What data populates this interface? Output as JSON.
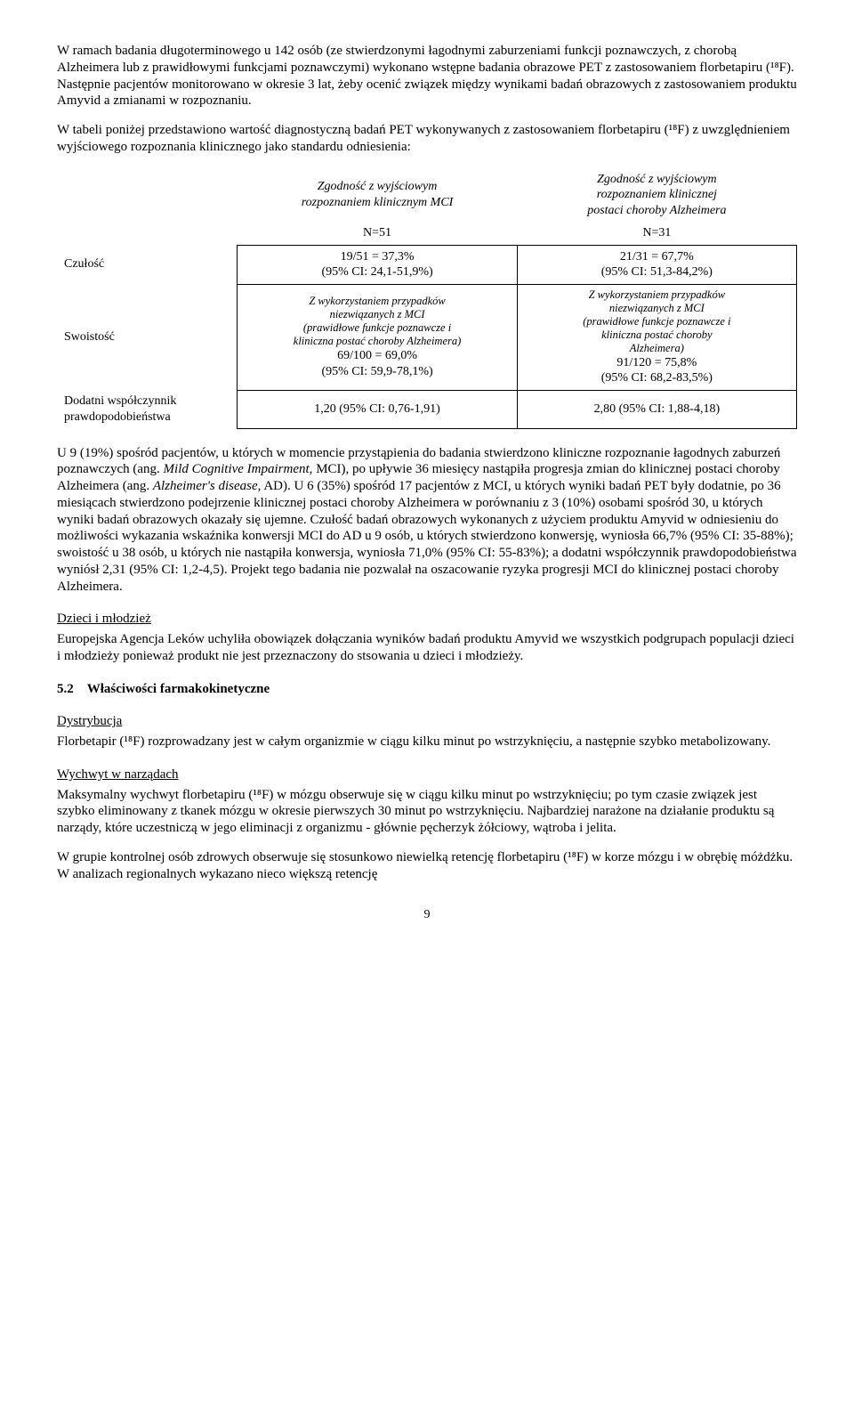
{
  "intro_para": "W ramach badania długoterminowego u 142 osób (ze stwierdzonymi łagodnymi zaburzeniami funkcji poznawczych, z chorobą Alzheimera lub z prawidłowymi funkcjami poznawczymi) wykonano wstępne badania obrazowe PET z zastosowaniem florbetapiru (¹⁸F). Następnie pacjentów monitorowano w okresie 3 lat, żeby ocenić związek między wynikami badań obrazowych z zastosowaniem produktu Amyvid a zmianami w rozpoznaniu.",
  "table_intro": "W tabeli poniżej przedstawiono wartość diagnostyczną badań PET wykonywanych z zastosowaniem florbetapiru (¹⁸F) z uwzględnieniem wyjściowego rozpoznania klinicznego jako standardu odniesienia:",
  "table": {
    "col1_head_line1": "Zgodność z wyjściowym",
    "col1_head_line2": "rozpoznaniem klinicznym MCI",
    "col2_head_line1": "Zgodność z wyjściowym",
    "col2_head_line2": "rozpoznaniem klinicznej",
    "col2_head_line3": "postaci choroby Alzheimera",
    "col1_n": "N=51",
    "col2_n": "N=31",
    "row_sens_label": "Czułość",
    "row_spec_label": "Swoistość",
    "row_plr_label_l1": "Dodatni współczynnik",
    "row_plr_label_l2": "prawdopodobieństwa",
    "sens_col1_l1": "19/51 = 37,3%",
    "sens_col1_l2": "(95% CI: 24,1-51,9%)",
    "sens_col2_l1": "21/31 = 67,7%",
    "sens_col2_l2": "(95% CI: 51,3-84,2%)",
    "spec_col1_it_l1": "Z wykorzystaniem przypadków",
    "spec_col1_it_l2": "niezwiązanych z MCI",
    "spec_col1_it_l3": "(prawidłowe funkcje poznawcze i",
    "spec_col1_it_l4": "kliniczna postać choroby Alzheimera)",
    "spec_col1_l5": "69/100 = 69,0%",
    "spec_col1_l6": "(95% CI: 59,9-78,1%)",
    "spec_col2_it_l1": "Z wykorzystaniem przypadków",
    "spec_col2_it_l2": "niezwiązanych z MCI",
    "spec_col2_it_l3": "(prawidłowe funkcje poznawcze i",
    "spec_col2_it_l4": "kliniczna postać choroby",
    "spec_col2_it_l5": "Alzheimera)",
    "spec_col2_l6": "91/120 = 75,8%",
    "spec_col2_l7": "(95% CI: 68,2-83,5%)",
    "plr_col1": "1,20 (95% CI: 0,76-1,91)",
    "plr_col2": "2,80 (95% CI: 1,88-4,18)"
  },
  "post_table_para_part1": "U 9 (19%) spośród pacjentów, u których w momencie przystąpienia do badania stwierdzono kliniczne rozpoznanie łagodnych zaburzeń poznawczych (ang. ",
  "post_table_para_it1": "Mild Cognitive Impairment,",
  "post_table_para_part2": " MCI), po upływie 36 miesięcy nastąpiła progresja zmian do klinicznej postaci choroby Alzheimera (ang. ",
  "post_table_para_it2": "Alzheimer's disease",
  "post_table_para_part3": ", AD). U 6 (35%) spośród 17 pacjentów z MCI, u których wyniki badań PET były dodatnie, po 36 miesiącach stwierdzono podejrzenie klinicznej postaci choroby Alzheimera w porównaniu z 3 (10%) osobami spośród 30, u których wyniki badań obrazowych okazały się ujemne. Czułość badań obrazowych wykonanych z użyciem produktu Amyvid w odniesieniu do możliwości wykazania wskaźnika konwersji MCI do AD u 9 osób, u których stwierdzono konwersję, wyniosła 66,7% (95% CI: 35-88%); swoistość u 38 osób, u których nie nastąpiła konwersja, wyniosła 71,0% (95% CI: 55-83%); a dodatni współczynnik prawdopodobieństwa wyniósł 2,31 (95% CI: 1,2-4,5). Projekt tego badania nie pozwalał na oszacowanie ryzyka progresji MCI do klinicznej postaci choroby Alzheimera.",
  "children_head": "Dzieci i młodzież",
  "children_para": "Europejska Agencja Leków uchyliła obowiązek dołączania wyników badań produktu Amyvid we wszystkich podgrupach populacji dzieci i młodzieży ponieważ produkt nie jest przeznaczony do stsowania u dzieci i młodzieży.",
  "sec52_num": "5.2",
  "sec52_title": "Właściwości farmakokinetyczne",
  "dist_head": "Dystrybucja",
  "dist_para": "Florbetapir (¹⁸F) rozprowadzany jest w całym organizmie w ciągu kilku minut po wstrzyknięciu, a następnie szybko metabolizowany.",
  "uptake_head": "Wychwyt w narządach",
  "uptake_para": "Maksymalny wychwyt florbetapiru (¹⁸F) w mózgu obserwuje się w ciągu kilku minut po wstrzyknięciu; po tym czasie związek jest szybko eliminowany z tkanek mózgu w okresie pierwszych 30 minut po wstrzyknięciu. Najbardziej narażone na działanie produktu są narządy, które uczestniczą w jego eliminacji z organizmu - głównie pęcherzyk żółciowy, wątroba i jelita.",
  "last_para": "W grupie kontrolnej osób zdrowych obserwuje się stosunkowo niewielką retencję florbetapiru (¹⁸F) w korze mózgu i w obrębię móżdżku. W analizach regionalnych wykazano nieco większą retencję",
  "page_number": "9"
}
